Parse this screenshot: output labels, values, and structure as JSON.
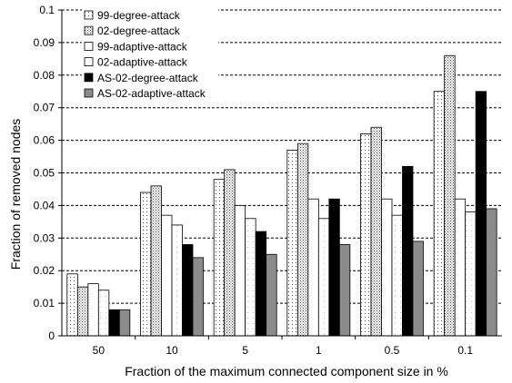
{
  "chart_data": {
    "type": "bar",
    "title": "",
    "xlabel": "Fraction of the maximum connected component size in %",
    "ylabel": "Fraction of removed nodes",
    "ylim": [
      0,
      0.1
    ],
    "y_ticks": [
      "0",
      "0.01",
      "0.02",
      "0.03",
      "0.04",
      "0.05",
      "0.06",
      "0.07",
      "0.08",
      "0.09",
      "0.1"
    ],
    "grid": "horizontal dashed",
    "legend_position": "top-left",
    "categories": [
      "50",
      "10",
      "5",
      "1",
      "0.5",
      "0.1"
    ],
    "series": [
      {
        "name": "99-degree-attack",
        "values": [
          0.019,
          0.044,
          0.048,
          0.057,
          0.062,
          0.075
        ],
        "fill": "dots-sparse"
      },
      {
        "name": "02-degree-attack",
        "values": [
          0.015,
          0.046,
          0.051,
          0.059,
          0.064,
          0.086
        ],
        "fill": "dots-dense"
      },
      {
        "name": "99-adaptive-attack",
        "values": [
          0.016,
          0.037,
          0.04,
          0.042,
          0.042,
          0.042
        ],
        "fill": "white"
      },
      {
        "name": "02-adaptive-attack",
        "values": [
          0.014,
          0.034,
          0.036,
          0.036,
          0.037,
          0.038
        ],
        "fill": "white-fine"
      },
      {
        "name": "AS-02-degree-attack",
        "values": [
          0.008,
          0.028,
          0.032,
          0.042,
          0.052,
          0.075
        ],
        "fill": "black"
      },
      {
        "name": "AS-02-adaptive-attack",
        "values": [
          0.008,
          0.024,
          0.025,
          0.028,
          0.029,
          0.039
        ],
        "fill": "gray"
      }
    ]
  }
}
